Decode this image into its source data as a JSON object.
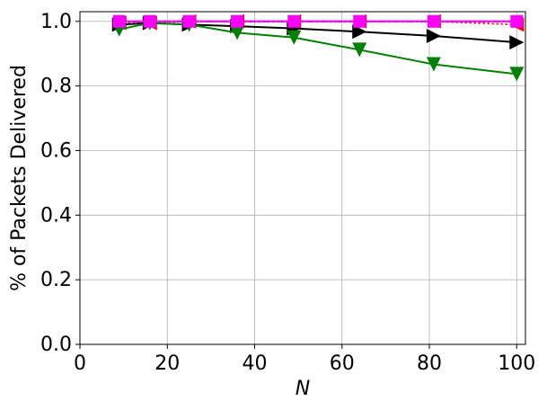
{
  "chart_data": {
    "type": "line",
    "x_label": "N",
    "y_label": "% of Packets Delivered",
    "x": [
      9,
      16,
      25,
      36,
      49,
      64,
      81,
      100
    ],
    "xlim": [
      0,
      102
    ],
    "xticks": [
      0,
      20,
      40,
      60,
      80,
      100
    ],
    "ylim": [
      0,
      1.03
    ],
    "yticks": [
      {
        "value": 0,
        "label": "0.0"
      },
      0.2,
      0.4,
      0.6,
      0.8,
      {
        "value": 1,
        "label": "1.0"
      }
    ],
    "grid": true,
    "series": [
      {
        "color": "#ff0000",
        "marker": "triangle-left",
        "linestyle": "dotted",
        "values": [
          0.995,
          0.995,
          1.0,
          1.0,
          1.0,
          1.0,
          1.0,
          0.99
        ]
      },
      {
        "color": "#0000ff",
        "marker": "circle",
        "linestyle": "dashdot",
        "values": [
          1.0,
          1.0,
          1.0,
          1.0,
          1.0,
          1.0,
          1.0,
          1.0
        ]
      },
      {
        "color": "#000000",
        "marker": "triangle-right",
        "linestyle": "solid",
        "values": [
          0.99,
          0.995,
          0.99,
          0.985,
          0.978,
          0.968,
          0.955,
          0.935
        ]
      },
      {
        "color": "#008000",
        "marker": "triangle-down",
        "linestyle": "solid",
        "values": [
          0.975,
          0.995,
          0.99,
          0.965,
          0.95,
          0.912,
          0.867,
          0.837
        ]
      },
      {
        "color": "#ff00ff",
        "marker": "square",
        "linestyle": "solid",
        "values": [
          1.0,
          1.0,
          1.0,
          1.0,
          1.0,
          1.0,
          1.0,
          1.0
        ]
      }
    ]
  }
}
